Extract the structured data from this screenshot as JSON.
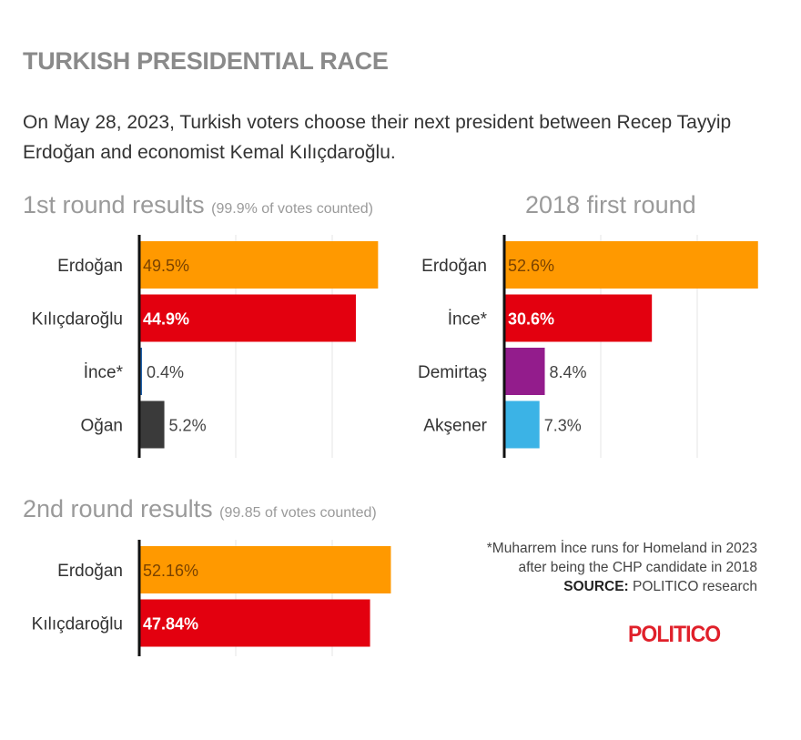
{
  "header": {
    "title": "TURKISH PRESIDENTIAL RACE",
    "intro": "On May 28, 2023, Turkish voters choose their next president between Recep Tayyip Erdoğan and economist Kemal Kılıçdaroğlu."
  },
  "chart_data": [
    {
      "type": "bar",
      "orientation": "horizontal",
      "title": "1st round results",
      "subtitle": "(99.9% of votes counted)",
      "categories": [
        "Erdoğan",
        "Kılıçdaroğlu",
        "İnce*",
        "Oğan"
      ],
      "values": [
        49.5,
        44.9,
        0.4,
        5.2
      ],
      "value_labels": [
        "49.5%",
        "44.9%",
        "0.4%",
        "5.2%"
      ],
      "colors": [
        "#ff9900",
        "#e3000f",
        "#1f5fa8",
        "#3a3a3a"
      ],
      "gridlines": [
        20,
        40
      ],
      "grid": true
    },
    {
      "type": "bar",
      "orientation": "horizontal",
      "title": "2018 first round",
      "subtitle": "",
      "categories": [
        "Erdoğan",
        "İnce*",
        "Demirtaş",
        "Akşener"
      ],
      "values": [
        52.6,
        30.6,
        8.4,
        7.3
      ],
      "value_labels": [
        "52.6%",
        "30.6%",
        "8.4%",
        "7.3%"
      ],
      "colors": [
        "#ff9900",
        "#e3000f",
        "#931c8c",
        "#3bb3e6"
      ],
      "gridlines": [
        20,
        40
      ],
      "grid": true
    },
    {
      "type": "bar",
      "orientation": "horizontal",
      "title": "2nd round results",
      "subtitle": "(99.85 of votes counted)",
      "categories": [
        "Erdoğan",
        "Kılıçdaroğlu"
      ],
      "values": [
        52.16,
        47.84
      ],
      "value_labels": [
        "52.16%",
        "47.84%"
      ],
      "colors": [
        "#ff9900",
        "#e3000f"
      ],
      "gridlines": [
        20,
        40
      ],
      "grid": true
    }
  ],
  "footnote": {
    "line1": "*Muharrem İnce runs for Homeland in 2023",
    "line2": "after being the CHP candidate in 2018",
    "source_label": "SOURCE:",
    "source_text": "POLITICO research"
  },
  "logo": "POLITICO"
}
